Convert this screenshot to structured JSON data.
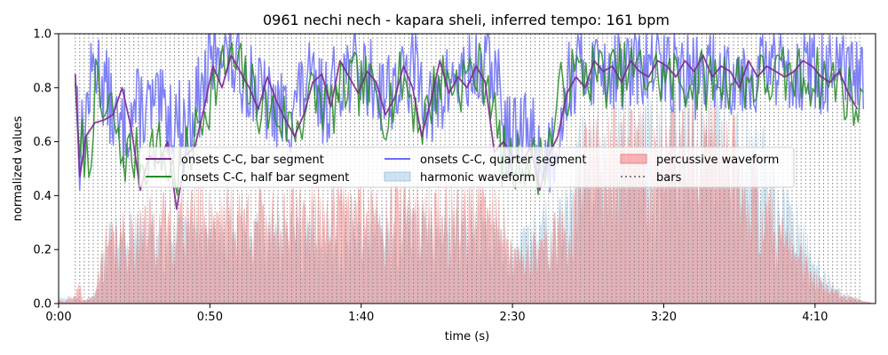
{
  "chart_data": {
    "type": "line",
    "title": "0961 nechi nech - kapara sheli, inferred tempo: 161 bpm",
    "xlabel": "time (s)",
    "ylabel": "normalized values",
    "xlim": [
      0,
      270
    ],
    "ylim": [
      0,
      1
    ],
    "x_ticks": [
      0,
      50,
      100,
      150,
      200,
      250
    ],
    "x_tick_labels": [
      "0:00",
      "0:50",
      "1:40",
      "2:30",
      "3:20",
      "4:10"
    ],
    "y_ticks": [
      0.0,
      0.2,
      0.4,
      0.6,
      0.8,
      1.0
    ],
    "y_tick_labels": [
      "0.0",
      "0.2",
      "0.4",
      "0.6",
      "0.8",
      "1.0"
    ],
    "grid": false,
    "legend_position": "center",
    "bars_line": {
      "start": 5.5,
      "end": 266,
      "interval": 1.49,
      "color": "#808080"
    },
    "series": [
      {
        "name": "onsets C-C, bar segment",
        "kind": "line",
        "color": "#7b2a8c",
        "x": [
          5.5,
          7.0,
          9.0,
          12,
          15,
          18,
          21,
          24,
          27,
          30,
          33,
          36,
          39,
          42,
          45,
          48,
          51,
          54,
          57,
          60,
          63,
          66,
          69,
          72,
          75,
          78,
          81,
          84,
          87,
          90,
          93,
          96,
          99,
          102,
          105,
          108,
          111,
          114,
          117,
          120,
          123,
          126,
          129,
          132,
          135,
          138,
          141,
          144,
          147,
          150,
          153,
          156,
          159,
          162,
          165,
          168,
          171,
          174,
          177,
          180,
          183,
          186,
          189,
          192,
          195,
          198,
          201,
          204,
          207,
          210,
          213,
          216,
          219,
          222,
          225,
          228,
          231,
          234,
          237,
          240,
          243,
          246,
          249,
          252,
          255,
          258,
          261,
          264
        ],
        "y": [
          0.85,
          0.47,
          0.62,
          0.67,
          0.68,
          0.7,
          0.8,
          0.65,
          0.42,
          0.55,
          0.52,
          0.6,
          0.35,
          0.55,
          0.58,
          0.72,
          0.88,
          0.8,
          0.92,
          0.86,
          0.8,
          0.72,
          0.84,
          0.75,
          0.68,
          0.62,
          0.7,
          0.82,
          0.85,
          0.73,
          0.9,
          0.84,
          0.78,
          0.86,
          0.82,
          0.7,
          0.76,
          0.88,
          0.8,
          0.62,
          0.75,
          0.9,
          0.78,
          0.84,
          0.8,
          0.88,
          0.82,
          0.56,
          0.6,
          0.55,
          0.52,
          0.58,
          0.42,
          0.55,
          0.62,
          0.78,
          0.84,
          0.8,
          0.9,
          0.86,
          0.88,
          0.82,
          0.9,
          0.86,
          0.84,
          0.9,
          0.88,
          0.84,
          0.9,
          0.86,
          0.92,
          0.84,
          0.88,
          0.86,
          0.8,
          0.9,
          0.84,
          0.88,
          0.86,
          0.84,
          0.86,
          0.9,
          0.88,
          0.84,
          0.82,
          0.86,
          0.78,
          0.72
        ]
      },
      {
        "name": "onsets C-C, half bar segment",
        "kind": "line",
        "color": "#238b23",
        "x": [
          5.5,
          266
        ],
        "y_profile": [
          [
            5.5,
            0.88
          ],
          [
            6.5,
            0.47
          ],
          [
            8,
            0.6
          ],
          [
            10,
            0.5
          ],
          [
            12,
            0.8
          ],
          [
            15,
            0.68
          ],
          [
            18,
            0.72
          ],
          [
            20,
            0.55
          ],
          [
            24,
            0.55
          ],
          [
            28,
            0.52
          ],
          [
            32,
            0.6
          ],
          [
            36,
            0.5
          ],
          [
            40,
            0.48
          ],
          [
            44,
            0.58
          ],
          [
            48,
            0.72
          ],
          [
            52,
            0.82
          ],
          [
            56,
            0.9
          ],
          [
            60,
            0.86
          ],
          [
            66,
            0.74
          ],
          [
            72,
            0.7
          ],
          [
            78,
            0.65
          ],
          [
            84,
            0.78
          ],
          [
            90,
            0.72
          ],
          [
            96,
            0.82
          ],
          [
            102,
            0.8
          ],
          [
            108,
            0.72
          ],
          [
            114,
            0.84
          ],
          [
            120,
            0.66
          ],
          [
            126,
            0.84
          ],
          [
            132,
            0.82
          ],
          [
            138,
            0.86
          ],
          [
            142,
            0.84
          ],
          [
            146,
            0.56
          ],
          [
            150,
            0.5
          ],
          [
            154,
            0.55
          ],
          [
            158,
            0.5
          ],
          [
            162,
            0.58
          ],
          [
            166,
            0.78
          ],
          [
            170,
            0.84
          ],
          [
            176,
            0.86
          ],
          [
            182,
            0.84
          ],
          [
            190,
            0.86
          ],
          [
            200,
            0.84
          ],
          [
            210,
            0.82
          ],
          [
            220,
            0.84
          ],
          [
            230,
            0.82
          ],
          [
            240,
            0.84
          ],
          [
            250,
            0.84
          ],
          [
            258,
            0.82
          ],
          [
            266,
            0.7
          ]
        ],
        "volatility": 0.12,
        "seed": 7
      },
      {
        "name": "onsets C-C, quarter segment",
        "kind": "line",
        "color": "#6a6cf6",
        "x": [
          5.5,
          266
        ],
        "y_profile": [
          [
            5.5,
            0.9
          ],
          [
            7,
            0.56
          ],
          [
            9,
            0.7
          ],
          [
            12,
            0.9
          ],
          [
            16,
            0.78
          ],
          [
            20,
            0.62
          ],
          [
            25,
            0.72
          ],
          [
            30,
            0.72
          ],
          [
            36,
            0.7
          ],
          [
            42,
            0.66
          ],
          [
            48,
            0.8
          ],
          [
            53,
            0.98
          ],
          [
            58,
            0.88
          ],
          [
            64,
            0.82
          ],
          [
            70,
            0.72
          ],
          [
            76,
            0.7
          ],
          [
            82,
            0.82
          ],
          [
            88,
            0.74
          ],
          [
            94,
            0.86
          ],
          [
            100,
            0.86
          ],
          [
            106,
            0.8
          ],
          [
            112,
            0.8
          ],
          [
            118,
            0.88
          ],
          [
            124,
            0.7
          ],
          [
            130,
            0.84
          ],
          [
            136,
            0.84
          ],
          [
            140,
            0.86
          ],
          [
            144,
            0.88
          ],
          [
            148,
            0.62
          ],
          [
            152,
            0.62
          ],
          [
            156,
            0.66
          ],
          [
            160,
            0.52
          ],
          [
            164,
            0.58
          ],
          [
            168,
            0.82
          ],
          [
            174,
            0.88
          ],
          [
            180,
            0.88
          ],
          [
            190,
            0.86
          ],
          [
            200,
            0.88
          ],
          [
            210,
            0.84
          ],
          [
            220,
            0.86
          ],
          [
            230,
            0.86
          ],
          [
            240,
            0.88
          ],
          [
            250,
            0.86
          ],
          [
            258,
            0.84
          ],
          [
            266,
            0.84
          ]
        ],
        "volatility": 0.16,
        "seed": 13
      },
      {
        "name": "harmonic waveform",
        "kind": "area",
        "color": "#a6cbe3",
        "x": [
          0,
          270
        ],
        "envelope": [
          [
            0,
            0.02
          ],
          [
            5,
            0.03
          ],
          [
            8,
            0.01
          ],
          [
            13,
            0.05
          ],
          [
            16,
            0.28
          ],
          [
            22,
            0.3
          ],
          [
            30,
            0.3
          ],
          [
            40,
            0.3
          ],
          [
            50,
            0.3
          ],
          [
            60,
            0.3
          ],
          [
            70,
            0.3
          ],
          [
            80,
            0.3
          ],
          [
            90,
            0.3
          ],
          [
            100,
            0.3
          ],
          [
            110,
            0.32
          ],
          [
            120,
            0.32
          ],
          [
            130,
            0.32
          ],
          [
            140,
            0.3
          ],
          [
            146,
            0.3
          ],
          [
            150,
            0.2
          ],
          [
            160,
            0.35
          ],
          [
            168,
            0.4
          ],
          [
            172,
            0.62
          ],
          [
            180,
            0.66
          ],
          [
            190,
            0.7
          ],
          [
            200,
            0.72
          ],
          [
            210,
            0.74
          ],
          [
            220,
            0.76
          ],
          [
            226,
            0.7
          ],
          [
            232,
            0.6
          ],
          [
            236,
            0.5
          ],
          [
            240,
            0.4
          ],
          [
            244,
            0.32
          ],
          [
            248,
            0.22
          ],
          [
            252,
            0.14
          ],
          [
            256,
            0.07
          ],
          [
            260,
            0.04
          ],
          [
            266,
            0.01
          ],
          [
            270,
            0.0
          ]
        ],
        "seed": 29
      },
      {
        "name": "percussive waveform",
        "kind": "area",
        "color": "#f08080",
        "x": [
          0,
          270
        ],
        "envelope": [
          [
            0,
            0.01
          ],
          [
            5,
            0.02
          ],
          [
            7,
            0.08
          ],
          [
            8,
            0.01
          ],
          [
            12,
            0.03
          ],
          [
            15,
            0.25
          ],
          [
            22,
            0.3
          ],
          [
            30,
            0.35
          ],
          [
            40,
            0.38
          ],
          [
            50,
            0.4
          ],
          [
            60,
            0.4
          ],
          [
            70,
            0.38
          ],
          [
            80,
            0.38
          ],
          [
            90,
            0.42
          ],
          [
            100,
            0.4
          ],
          [
            110,
            0.42
          ],
          [
            120,
            0.4
          ],
          [
            130,
            0.4
          ],
          [
            140,
            0.42
          ],
          [
            146,
            0.38
          ],
          [
            150,
            0.18
          ],
          [
            156,
            0.22
          ],
          [
            164,
            0.3
          ],
          [
            170,
            0.34
          ],
          [
            172,
            0.62
          ],
          [
            180,
            0.64
          ],
          [
            190,
            0.66
          ],
          [
            200,
            0.66
          ],
          [
            210,
            0.66
          ],
          [
            220,
            0.66
          ],
          [
            226,
            0.6
          ],
          [
            232,
            0.46
          ],
          [
            236,
            0.36
          ],
          [
            240,
            0.28
          ],
          [
            244,
            0.22
          ],
          [
            248,
            0.14
          ],
          [
            252,
            0.08
          ],
          [
            256,
            0.05
          ],
          [
            260,
            0.03
          ],
          [
            266,
            0.01
          ],
          [
            270,
            0.0
          ]
        ],
        "seed": 41
      }
    ],
    "legend": [
      {
        "label": "onsets C-C, bar segment",
        "color": "#7b2a8c",
        "kind": "line"
      },
      {
        "label": "onsets C-C, half bar segment",
        "color": "#238b23",
        "kind": "line"
      },
      {
        "label": "onsets C-C, quarter segment",
        "color": "#6a6cf6",
        "kind": "line"
      },
      {
        "label": "harmonic waveform",
        "color": "#a6cbe3",
        "kind": "patch"
      },
      {
        "label": "percussive waveform",
        "color": "#f08080",
        "kind": "patch"
      },
      {
        "label": "bars",
        "color": "#808080",
        "kind": "dotted"
      }
    ]
  }
}
